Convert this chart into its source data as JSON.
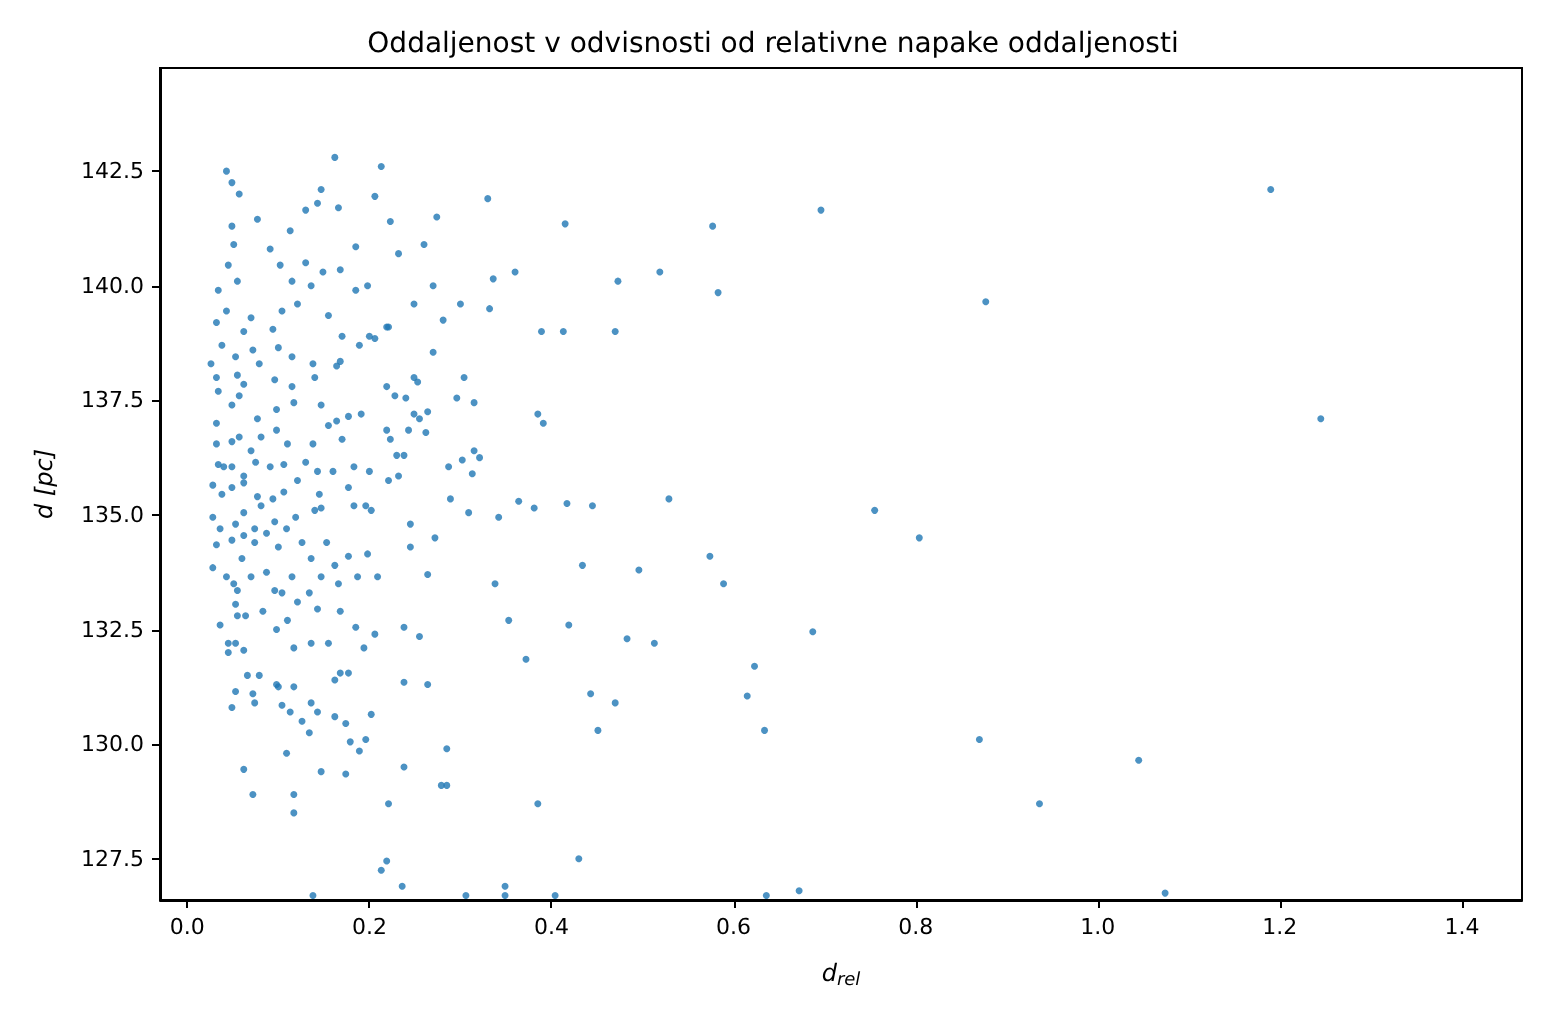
{
  "chart_data": {
    "type": "scatter",
    "title": "Oddaljenost v odvisnosti od relativne napake oddaljenosti",
    "xlabel": "d$_{rel}$",
    "ylabel": "d [pc]",
    "marker": "circle",
    "xlim": [
      -0.03,
      1.466
    ],
    "ylim": [
      126.6,
      144.75
    ],
    "xticks": [
      {
        "value": 0,
        "label": "0.0"
      },
      {
        "value": 0.2,
        "label": "0.2"
      },
      {
        "value": 0.4,
        "label": "0.4"
      },
      {
        "value": 0.6,
        "label": "0.6"
      },
      {
        "value": 0.8,
        "label": "0.8"
      },
      {
        "value": 1,
        "label": "1.0"
      },
      {
        "value": 1.2,
        "label": "1.2"
      },
      {
        "value": 1.4,
        "label": "1.4"
      }
    ],
    "yticks": [
      127.5,
      {
        "value": 130,
        "label": "130.0"
      },
      132.5,
      {
        "value": 135,
        "label": "135.0"
      },
      137.5,
      {
        "value": 140,
        "label": "140.0"
      },
      142.5
    ],
    "series": [
      {
        "color": "#1f77b4",
        "x": [
          1.19,
          0.696,
          0.577,
          0.473,
          0.519,
          0.583,
          0.47,
          0.877,
          1.245,
          0.529,
          0.755,
          0.804,
          0.574,
          0.496,
          0.589,
          0.483,
          0.513,
          0.687,
          0.623,
          0.47,
          0.615,
          0.634,
          0.87,
          1.045,
          0.936,
          0.636,
          0.672,
          1.074,
          0.162,
          0.213,
          0.043,
          0.049,
          0.057,
          0.147,
          0.206,
          0.33,
          0.077,
          0.13,
          0.143,
          0.166,
          0.223,
          0.274,
          0.415,
          0.049,
          0.113,
          0.051,
          0.091,
          0.185,
          0.232,
          0.26,
          0.045,
          0.102,
          0.13,
          0.149,
          0.168,
          0.034,
          0.055,
          0.115,
          0.136,
          0.185,
          0.198,
          0.249,
          0.27,
          0.281,
          0.3,
          0.36,
          0.336,
          0.332,
          0.389,
          0.413,
          0.032,
          0.043,
          0.062,
          0.07,
          0.104,
          0.121,
          0.094,
          0.155,
          0.17,
          0.221,
          0.206,
          0.026,
          0.038,
          0.053,
          0.072,
          0.079,
          0.1,
          0.115,
          0.138,
          0.168,
          0.189,
          0.2,
          0.032,
          0.055,
          0.062,
          0.096,
          0.115,
          0.14,
          0.164,
          0.219,
          0.24,
          0.253,
          0.034,
          0.049,
          0.057,
          0.077,
          0.098,
          0.117,
          0.147,
          0.164,
          0.177,
          0.191,
          0.219,
          0.238,
          0.262,
          0.23,
          0.315,
          0.032,
          0.032,
          0.049,
          0.057,
          0.07,
          0.081,
          0.098,
          0.11,
          0.138,
          0.155,
          0.17,
          0.034,
          0.04,
          0.049,
          0.062,
          0.075,
          0.091,
          0.106,
          0.13,
          0.143,
          0.16,
          0.183,
          0.2,
          0.028,
          0.038,
          0.049,
          0.062,
          0.077,
          0.094,
          0.106,
          0.121,
          0.145,
          0.177,
          0.183,
          0.196,
          0.202,
          0.028,
          0.036,
          0.053,
          0.062,
          0.074,
          0.081,
          0.096,
          0.119,
          0.14,
          0.147,
          0.028,
          0.032,
          0.049,
          0.062,
          0.06,
          0.074,
          0.087,
          0.1,
          0.109,
          0.126,
          0.136,
          0.153,
          0.162,
          0.177,
          0.198,
          0.043,
          0.051,
          0.055,
          0.07,
          0.087,
          0.096,
          0.115,
          0.134,
          0.147,
          0.166,
          0.187,
          0.209,
          0.053,
          0.055,
          0.064,
          0.083,
          0.104,
          0.121,
          0.143,
          0.168,
          0.185,
          0.194,
          0.206,
          0.036,
          0.045,
          0.045,
          0.053,
          0.062,
          0.098,
          0.11,
          0.117,
          0.136,
          0.155,
          0.162,
          0.168,
          0.177,
          0.066,
          0.079,
          0.053,
          0.049,
          0.072,
          0.074,
          0.098,
          0.1,
          0.104,
          0.113,
          0.117,
          0.126,
          0.134,
          0.136,
          0.143,
          0.162,
          0.174,
          0.179,
          0.189,
          0.196,
          0.202,
          0.109,
          0.062,
          0.147,
          0.174,
          0.072,
          0.117,
          0.117,
          0.221,
          0.219,
          0.213,
          0.236,
          0.138,
          0.285,
          0.279,
          0.238,
          0.285,
          0.349,
          0.349,
          0.306,
          0.404,
          0.385,
          0.43,
          0.451,
          0.443,
          0.372,
          0.264,
          0.238,
          0.434,
          0.338,
          0.353,
          0.419,
          0.255,
          0.238,
          0.264,
          0.272,
          0.245,
          0.245,
          0.342,
          0.364,
          0.381,
          0.417,
          0.445,
          0.309,
          0.289,
          0.302,
          0.287,
          0.321,
          0.313,
          0.232,
          0.221,
          0.223,
          0.243,
          0.249,
          0.255,
          0.264,
          0.315,
          0.385,
          0.391,
          0.304,
          0.296,
          0.228,
          0.27,
          0.249,
          0.219
        ],
        "values": [
          142.1,
          141.65,
          141.3,
          140.1,
          140.3,
          139.85,
          139.0,
          139.65,
          137.1,
          135.35,
          135.1,
          134.5,
          134.1,
          133.8,
          133.5,
          132.3,
          132.2,
          132.45,
          131.7,
          130.9,
          131.05,
          130.3,
          130.1,
          129.65,
          128.7,
          126.7,
          126.8,
          126.75,
          142.8,
          142.6,
          142.5,
          142.25,
          142.0,
          142.1,
          141.95,
          141.9,
          141.45,
          141.65,
          141.8,
          141.7,
          141.4,
          141.5,
          141.35,
          141.3,
          141.2,
          140.9,
          140.8,
          140.85,
          140.7,
          140.9,
          140.45,
          140.45,
          140.5,
          140.3,
          140.35,
          139.9,
          140.1,
          140.1,
          140.0,
          139.9,
          140.0,
          139.6,
          140.0,
          139.25,
          139.6,
          140.3,
          140.15,
          139.5,
          139.0,
          139.0,
          139.2,
          139.45,
          139.0,
          139.3,
          139.45,
          139.6,
          139.05,
          139.35,
          138.9,
          139.1,
          138.85,
          138.3,
          138.7,
          138.45,
          138.6,
          138.3,
          138.65,
          138.45,
          138.3,
          138.35,
          138.7,
          138.9,
          138.0,
          138.05,
          137.85,
          137.95,
          137.8,
          138.0,
          138.25,
          137.8,
          137.55,
          137.9,
          137.7,
          137.4,
          137.6,
          137.1,
          137.3,
          137.45,
          137.4,
          137.05,
          137.15,
          137.2,
          136.85,
          136.3,
          136.8,
          136.3,
          136.4,
          137.0,
          136.55,
          136.6,
          136.7,
          136.4,
          136.7,
          136.85,
          136.55,
          136.55,
          136.95,
          136.65,
          136.1,
          136.05,
          136.05,
          135.85,
          136.15,
          136.05,
          136.1,
          136.15,
          135.95,
          135.95,
          136.05,
          135.95,
          135.65,
          135.45,
          135.6,
          135.7,
          135.4,
          135.35,
          135.5,
          135.75,
          135.45,
          135.6,
          135.2,
          135.2,
          135.1,
          134.95,
          134.7,
          134.8,
          135.05,
          134.7,
          135.2,
          134.85,
          134.95,
          135.1,
          135.15,
          133.85,
          134.35,
          134.45,
          134.55,
          134.05,
          134.4,
          134.6,
          134.3,
          134.7,
          134.4,
          134.05,
          134.4,
          133.9,
          134.1,
          134.15,
          133.65,
          133.5,
          133.35,
          133.65,
          133.75,
          133.35,
          133.65,
          133.3,
          133.65,
          133.5,
          133.65,
          133.65,
          133.05,
          132.8,
          132.8,
          132.9,
          133.3,
          133.1,
          132.95,
          132.9,
          132.55,
          132.1,
          132.4,
          132.6,
          132.2,
          132.0,
          132.2,
          132.05,
          132.5,
          132.7,
          132.1,
          132.2,
          132.2,
          131.4,
          131.55,
          131.55,
          131.5,
          131.5,
          131.15,
          130.8,
          131.1,
          130.9,
          131.3,
          131.25,
          130.85,
          130.7,
          131.25,
          130.5,
          130.25,
          130.9,
          130.7,
          130.6,
          130.45,
          130.05,
          129.85,
          130.1,
          130.65,
          129.8,
          129.45,
          129.4,
          129.35,
          128.9,
          128.9,
          128.5,
          128.7,
          127.45,
          127.25,
          126.9,
          126.7,
          129.1,
          129.1,
          129.5,
          129.9,
          126.9,
          126.7,
          126.7,
          126.7,
          128.7,
          127.5,
          130.3,
          131.1,
          131.85,
          131.3,
          131.35,
          133.9,
          133.5,
          132.7,
          132.6,
          132.35,
          132.55,
          133.7,
          134.5,
          134.8,
          134.3,
          134.95,
          135.3,
          135.15,
          135.25,
          135.2,
          135.05,
          135.35,
          136.2,
          136.05,
          136.25,
          135.9,
          135.85,
          135.75,
          136.65,
          136.85,
          137.2,
          137.1,
          137.25,
          137.45,
          137.2,
          137.0,
          138.0,
          137.55,
          137.6,
          138.55,
          138.0,
          139.1
        ]
      }
    ]
  }
}
